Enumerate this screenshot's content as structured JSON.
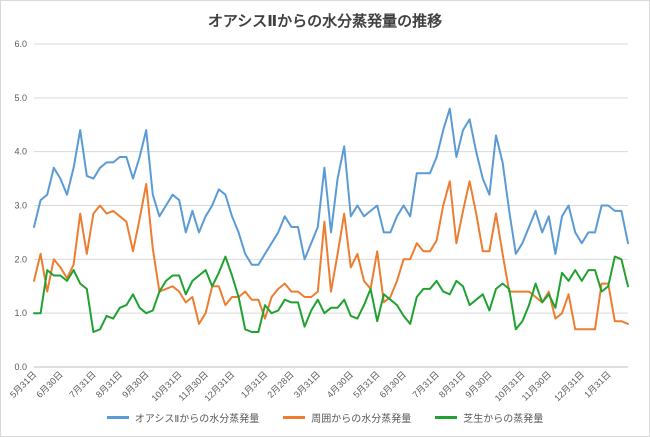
{
  "chart_data": {
    "type": "line",
    "title": "オアシスⅡからの水分蒸発量の推移",
    "xlabel": "",
    "ylabel": "",
    "ylim": [
      0,
      6
    ],
    "yticks": [
      "0.0",
      "1.0",
      "2.0",
      "3.0",
      "4.0",
      "5.0",
      "6.0"
    ],
    "grid": true,
    "legend_position": "bottom",
    "x_tick_labels": [
      "5月31日",
      "6月30日",
      "7月31日",
      "8月31日",
      "9月30日",
      "10月31日",
      "11月30日",
      "12月31日",
      "1月31日",
      "2月28日",
      "3月31日",
      "4月30日",
      "5月31日",
      "6月30日",
      "7月31日",
      "8月31日",
      "9月30日",
      "10月31日",
      "11月30日",
      "12月31日",
      "1月31日"
    ],
    "x_tick_index": [
      0,
      4,
      9,
      13,
      17,
      22,
      26,
      30,
      35,
      39,
      43,
      48,
      52,
      56,
      61,
      65,
      69,
      74,
      78,
      83,
      87
    ],
    "series": [
      {
        "name": "オアシスⅡからの水分蒸発量",
        "color": "#5b9bd5",
        "values": [
          2.6,
          3.1,
          3.2,
          3.7,
          3.5,
          3.2,
          3.7,
          4.4,
          3.55,
          3.5,
          3.7,
          3.8,
          3.8,
          3.9,
          3.9,
          3.5,
          3.9,
          4.4,
          3.2,
          2.8,
          3.0,
          3.2,
          3.1,
          2.5,
          2.9,
          2.5,
          2.8,
          3.0,
          3.3,
          3.2,
          2.8,
          2.5,
          2.1,
          1.9,
          1.9,
          2.1,
          2.3,
          2.5,
          2.8,
          2.6,
          2.6,
          2.0,
          2.3,
          2.6,
          3.7,
          2.5,
          3.5,
          4.1,
          2.8,
          3.0,
          2.8,
          2.9,
          3.0,
          2.5,
          2.5,
          2.8,
          3.0,
          2.8,
          3.6,
          3.6,
          3.6,
          3.9,
          4.4,
          4.8,
          3.9,
          4.4,
          4.6,
          4.0,
          3.5,
          3.2,
          4.3,
          3.8,
          2.9,
          2.1,
          2.3,
          2.6,
          2.9,
          2.5,
          2.8,
          2.1,
          2.8,
          3.0,
          2.5,
          2.3,
          2.5,
          2.5,
          3.0,
          3.0,
          2.9,
          2.9,
          2.3
        ]
      },
      {
        "name": "周囲からの水分蒸発量",
        "color": "#ed7d31",
        "values": [
          1.6,
          2.1,
          1.4,
          2.0,
          1.85,
          1.65,
          1.9,
          2.85,
          2.1,
          2.85,
          3.0,
          2.85,
          2.9,
          2.8,
          2.7,
          2.15,
          2.75,
          3.4,
          2.2,
          1.4,
          1.45,
          1.5,
          1.4,
          1.2,
          1.3,
          0.8,
          1.0,
          1.5,
          1.5,
          1.15,
          1.3,
          1.3,
          1.4,
          1.25,
          1.25,
          0.9,
          1.3,
          1.45,
          1.55,
          1.4,
          1.4,
          1.3,
          1.3,
          1.4,
          2.7,
          1.4,
          2.1,
          2.85,
          1.85,
          2.1,
          1.6,
          1.45,
          2.15,
          1.2,
          1.3,
          1.6,
          2.0,
          2.0,
          2.3,
          2.15,
          2.15,
          2.35,
          3.0,
          3.45,
          2.3,
          2.9,
          3.45,
          2.85,
          2.15,
          2.15,
          2.85,
          2.1,
          1.4,
          1.4,
          1.4,
          1.4,
          1.3,
          1.2,
          1.4,
          0.9,
          1.0,
          1.35,
          0.7,
          0.7,
          0.7,
          0.7,
          1.55,
          1.55,
          0.85,
          0.85,
          0.8
        ]
      },
      {
        "name": "芝生からの蒸発量",
        "color": "#21a131",
        "values": [
          1.0,
          1.0,
          1.8,
          1.7,
          1.7,
          1.6,
          1.8,
          1.55,
          1.45,
          0.65,
          0.7,
          0.95,
          0.9,
          1.1,
          1.15,
          1.35,
          1.1,
          1.0,
          1.05,
          1.4,
          1.6,
          1.7,
          1.7,
          1.35,
          1.6,
          1.7,
          1.8,
          1.5,
          1.75,
          2.05,
          1.7,
          1.3,
          0.7,
          0.65,
          0.65,
          1.15,
          1.0,
          1.05,
          1.25,
          1.2,
          1.2,
          0.75,
          1.05,
          1.25,
          1.0,
          1.1,
          1.1,
          1.25,
          0.95,
          0.9,
          1.15,
          1.45,
          0.85,
          1.35,
          1.25,
          1.15,
          0.95,
          0.8,
          1.3,
          1.45,
          1.45,
          1.6,
          1.4,
          1.35,
          1.6,
          1.5,
          1.15,
          1.25,
          1.35,
          1.05,
          1.45,
          1.55,
          1.45,
          0.7,
          0.85,
          1.15,
          1.55,
          1.2,
          1.35,
          1.1,
          1.75,
          1.6,
          1.8,
          1.6,
          1.8,
          1.8,
          1.4,
          1.5,
          2.05,
          2.0,
          1.5
        ]
      }
    ]
  }
}
